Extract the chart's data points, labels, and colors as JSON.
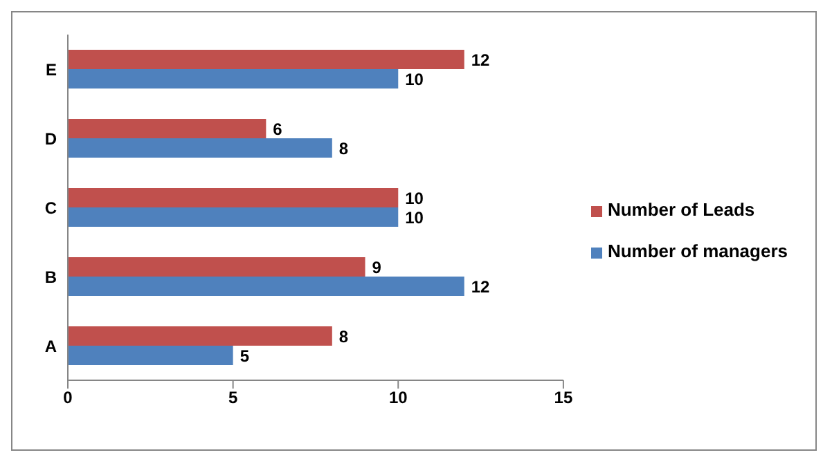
{
  "chart_data": {
    "type": "bar",
    "orientation": "horizontal",
    "categories": [
      "E",
      "D",
      "C",
      "B",
      "A"
    ],
    "series": [
      {
        "name": "Number of Leads",
        "color": "#c0504d",
        "values": [
          12,
          6,
          10,
          9,
          8
        ]
      },
      {
        "name": "Number of managers",
        "color": "#4f81bd",
        "values": [
          10,
          8,
          10,
          12,
          5
        ]
      }
    ],
    "xlim": [
      0,
      15
    ],
    "xticks": [
      0,
      5,
      10,
      15
    ],
    "data_labels": true,
    "legend": "right",
    "grid": false
  }
}
